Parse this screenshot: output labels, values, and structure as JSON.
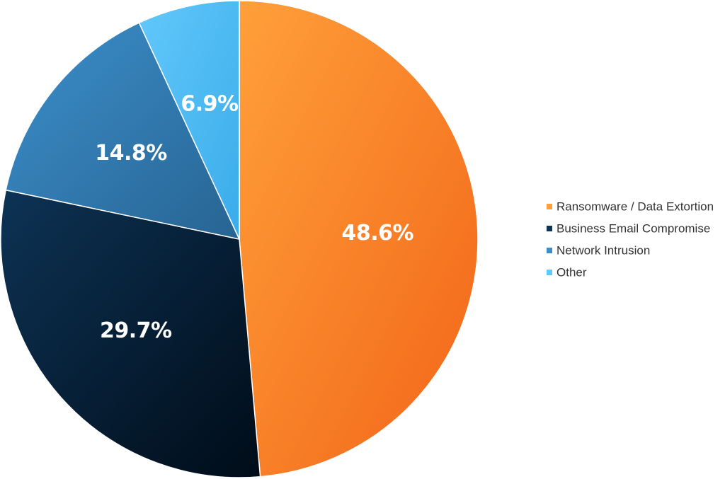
{
  "chart_data": {
    "type": "pie",
    "categories": [
      "Ransomware / Data Extortion",
      "Business Email Compromise",
      "Network Intrusion",
      "Other"
    ],
    "values": [
      48.6,
      29.7,
      14.8,
      6.9
    ],
    "value_labels": [
      "48.6%",
      "29.7%",
      "14.8%",
      "6.9%"
    ],
    "start_angle_deg": 0,
    "direction": "clockwise",
    "legend_position": "right",
    "colors": [
      {
        "light": "#FFA03A",
        "dark": "#F26418"
      },
      {
        "light": "#0D3355",
        "dark": "#000C18"
      },
      {
        "light": "#3C8FCC",
        "dark": "#276492"
      },
      {
        "light": "#62C8FA",
        "dark": "#3AACEA"
      }
    ],
    "label_color": "#FFFFFF",
    "border_color": "#FFFFFF"
  }
}
